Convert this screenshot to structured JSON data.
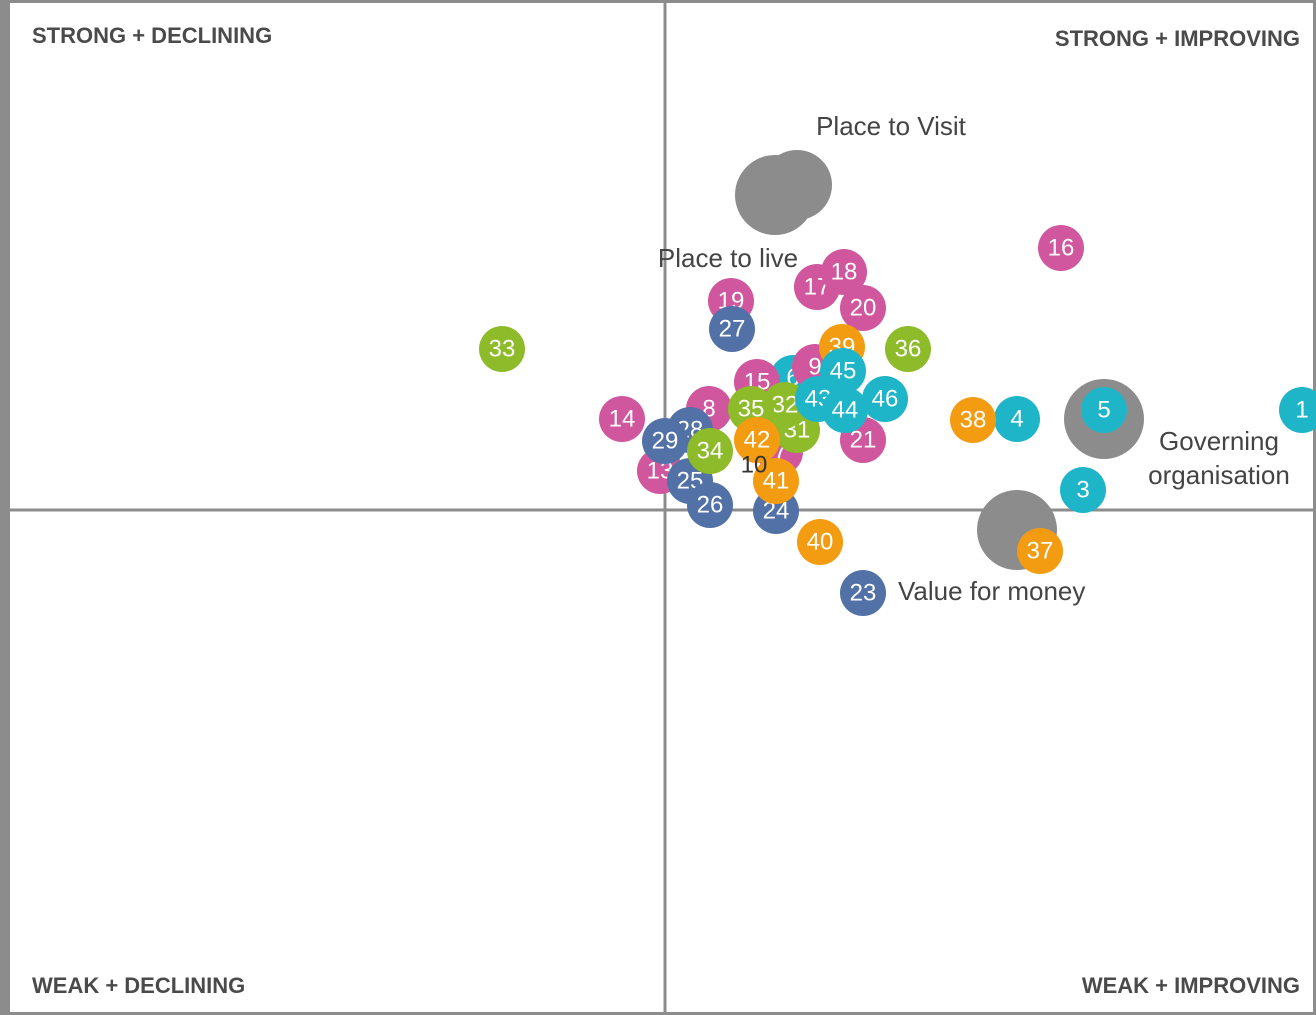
{
  "chart_data": {
    "type": "bubble",
    "quadrant_labels": {
      "top_left": "STRONG + DECLINING",
      "top_right": "STRONG + IMPROVING",
      "bottom_left": "WEAK + DECLINING",
      "bottom_right": "WEAK + IMPROVING"
    },
    "xlim": [
      -655,
      651
    ],
    "ylim": [
      -505,
      505
    ],
    "groups": [
      {
        "name": [
          "Place to Visit"
        ],
        "color": "#8c8c8c",
        "x": 132,
        "y": 325,
        "size": 35
      },
      {
        "name": [
          "Place to live"
        ],
        "color": "#8c8c8c",
        "x": 110,
        "y": 315,
        "size": 40
      },
      {
        "name": [
          "Governing",
          "organisation"
        ],
        "color": "#8c8c8c",
        "x": 439,
        "y": 91,
        "size": 40
      },
      {
        "name": [
          "Value for money"
        ],
        "color": "#8c8c8c",
        "x": 352,
        "y": -20,
        "size": 40
      }
    ],
    "points": [
      {
        "label": "1",
        "color": "#1fb5c8",
        "x": 637,
        "y": 100,
        "size": 23
      },
      {
        "label": "3",
        "color": "#1fb5c8",
        "x": 418,
        "y": 20,
        "size": 23
      },
      {
        "label": "4",
        "color": "#1fb5c8",
        "x": 352,
        "y": 91,
        "size": 23
      },
      {
        "label": "5",
        "color": "#1fb5c8",
        "x": 439,
        "y": 100,
        "size": 23
      },
      {
        "label": "6",
        "color": "#1fb5c8",
        "x": 128,
        "y": 132,
        "size": 23
      },
      {
        "label": "7",
        "color": "#d0579d",
        "x": 115,
        "y": 58,
        "size": 23
      },
      {
        "label": "8",
        "color": "#d0579d",
        "x": 44,
        "y": 101,
        "size": 23
      },
      {
        "label": "9",
        "color": "#d0579d",
        "x": 150,
        "y": 143,
        "size": 23
      },
      {
        "label": "13",
        "color": "#d0579d",
        "x": -5,
        "y": 39,
        "size": 23
      },
      {
        "label": "14",
        "color": "#d0579d",
        "x": -43,
        "y": 91,
        "size": 23
      },
      {
        "label": "15",
        "color": "#d0579d",
        "x": 92,
        "y": 128,
        "size": 23
      },
      {
        "label": "16",
        "color": "#d0579d",
        "x": 396,
        "y": 262,
        "size": 23
      },
      {
        "label": "17",
        "color": "#d0579d",
        "x": 152,
        "y": 223,
        "size": 23
      },
      {
        "label": "18",
        "color": "#d0579d",
        "x": 179,
        "y": 238,
        "size": 23
      },
      {
        "label": "19",
        "color": "#d0579d",
        "x": 66,
        "y": 209,
        "size": 23
      },
      {
        "label": "20",
        "color": "#d0579d",
        "x": 198,
        "y": 202,
        "size": 23
      },
      {
        "label": "21",
        "color": "#d0579d",
        "x": 198,
        "y": 70,
        "size": 23
      },
      {
        "label": "23",
        "color": "#5271a6",
        "x": 198,
        "y": -83,
        "size": 23
      },
      {
        "label": "24",
        "color": "#5271a6",
        "x": 111,
        "y": -1,
        "size": 23
      },
      {
        "label": "25",
        "color": "#5271a6",
        "x": 25,
        "y": 29,
        "size": 23
      },
      {
        "label": "26",
        "color": "#5271a6",
        "x": 45,
        "y": 5,
        "size": 23
      },
      {
        "label": "27",
        "color": "#5271a6",
        "x": 67,
        "y": 181,
        "size": 23
      },
      {
        "label": "28",
        "color": "#5271a6",
        "x": 25,
        "y": 80,
        "size": 23
      },
      {
        "label": "29",
        "color": "#5271a6",
        "x": 0,
        "y": 69,
        "size": 23
      },
      {
        "label": "31",
        "color": "#8dbb2a",
        "x": 132,
        "y": 80,
        "size": 23
      },
      {
        "label": "32",
        "color": "#8dbb2a",
        "x": 120,
        "y": 105,
        "size": 23
      },
      {
        "label": "33",
        "color": "#8dbb2a",
        "x": -163,
        "y": 161,
        "size": 23
      },
      {
        "label": "34",
        "color": "#8dbb2a",
        "x": 45,
        "y": 59,
        "size": 23
      },
      {
        "label": "35",
        "color": "#8dbb2a",
        "x": 86,
        "y": 101,
        "size": 23
      },
      {
        "label": "36",
        "color": "#8dbb2a",
        "x": 243,
        "y": 161,
        "size": 23
      },
      {
        "label": "37",
        "color": "#f39c12",
        "x": 375,
        "y": -41,
        "size": 23
      },
      {
        "label": "38",
        "color": "#f39c12",
        "x": 308,
        "y": 90,
        "size": 23
      },
      {
        "label": "39",
        "color": "#f39c12",
        "x": 177,
        "y": 163,
        "size": 23
      },
      {
        "label": "40",
        "color": "#f39c12",
        "x": 155,
        "y": -32,
        "size": 23
      },
      {
        "label": "41",
        "color": "#f39c12",
        "x": 111,
        "y": 29,
        "size": 23
      },
      {
        "label": "42",
        "color": "#f39c12",
        "x": 92,
        "y": 70,
        "size": 23
      },
      {
        "label": "43",
        "color": "#1fb5c8",
        "x": 153,
        "y": 111,
        "size": 23
      },
      {
        "label": "44",
        "color": "#1fb5c8",
        "x": 180,
        "y": 100,
        "size": 23
      },
      {
        "label": "45",
        "color": "#1fb5c8",
        "x": 178,
        "y": 139,
        "size": 23
      },
      {
        "label": "46",
        "color": "#1fb5c8",
        "x": 220,
        "y": 111,
        "size": 23
      },
      {
        "label": "10",
        "color": "#333333",
        "x": 89,
        "y": 44,
        "size": 0
      }
    ]
  }
}
